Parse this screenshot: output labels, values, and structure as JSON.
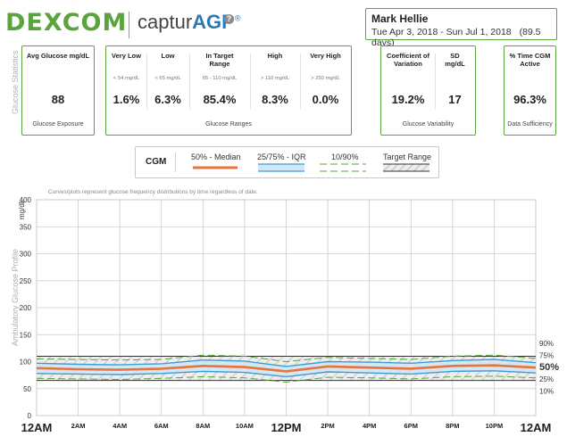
{
  "header": {
    "logo": "DEXCOM",
    "product_prefix": "captur",
    "product_suffix": "AGP",
    "product_mark": "®",
    "help_glyph": "?"
  },
  "patient": {
    "name": "Mark Hellie",
    "date_range": "Tue Apr 3, 2018 - Sun Jul 1, 2018",
    "days": "(89.5 days)"
  },
  "labels": {
    "glucose_statistics": "Glucose Statistics",
    "agp": "Ambulatory Glucose Profile",
    "chart_note": "Curves/plots represent glucose frequency distributions by time regardless of date."
  },
  "stats": {
    "avg": {
      "header": "Avg Glucose mg/dL",
      "value": "88",
      "footer": "Glucose Exposure"
    },
    "ranges": {
      "footer": "Glucose Ranges",
      "items": [
        {
          "header": "Very Low",
          "sub": "< 54 mg/dL",
          "value": "1.6%"
        },
        {
          "header": "Low",
          "sub": "< 65 mg/dL",
          "value": "6.3%"
        },
        {
          "header": "In Target Range",
          "sub": "65 - 110 mg/dL",
          "value": "85.4%"
        },
        {
          "header": "High",
          "sub": "> 110 mg/dL",
          "value": "8.3%"
        },
        {
          "header": "Very High",
          "sub": "> 250 mg/dL",
          "value": "0.0%"
        }
      ]
    },
    "variability": {
      "footer": "Glucose Variability",
      "items": [
        {
          "header": "Coefficient of Variation",
          "value": "19.2%"
        },
        {
          "header": "SD mg/dL",
          "value": "17"
        }
      ]
    },
    "active": {
      "header": "% Time CGM Active",
      "value": "96.3%",
      "footer": "Data Sufficiency"
    }
  },
  "legend": {
    "title": "CGM",
    "items": [
      "50% - Median",
      "25/75% - IQR",
      "10/90%",
      "Target Range"
    ]
  },
  "colors": {
    "brand_green": "#5aa33d",
    "median": "#e8743b",
    "iqr_line": "#3d9bd5",
    "iqr_fill": "#cfe7f6",
    "p10_90": "#5aa33d",
    "grid": "#cccccc"
  },
  "chart_data": {
    "type": "line",
    "ylabel": "mg/dL",
    "ylim": [
      0,
      400
    ],
    "yticks": [
      "0",
      "50",
      "100",
      "150",
      "200",
      "250",
      "300",
      "350",
      "400"
    ],
    "x_hours": [
      0,
      2,
      4,
      6,
      8,
      10,
      12,
      14,
      16,
      18,
      20,
      22,
      24
    ],
    "xticks": [
      "12AM",
      "2AM",
      "4AM",
      "6AM",
      "8AM",
      "10AM",
      "12PM",
      "2PM",
      "4PM",
      "6PM",
      "8PM",
      "10PM",
      "12AM"
    ],
    "target_range": [
      65,
      110
    ],
    "series": [
      {
        "name": "90%",
        "values": [
          105,
          104,
          103,
          104,
          112,
          110,
          100,
          108,
          106,
          104,
          110,
          112,
          106
        ]
      },
      {
        "name": "75%",
        "values": [
          97,
          95,
          94,
          96,
          103,
          101,
          91,
          100,
          99,
          97,
          102,
          104,
          98
        ]
      },
      {
        "name": "50%",
        "values": [
          88,
          86,
          85,
          87,
          92,
          90,
          82,
          91,
          89,
          87,
          92,
          93,
          89
        ]
      },
      {
        "name": "25%",
        "values": [
          78,
          77,
          76,
          78,
          82,
          80,
          72,
          81,
          79,
          77,
          82,
          83,
          79
        ]
      },
      {
        "name": "10%",
        "values": [
          69,
          68,
          67,
          69,
          72,
          70,
          62,
          71,
          70,
          68,
          72,
          73,
          70
        ]
      }
    ],
    "percentile_labels": [
      "90%",
      "75%",
      "50%",
      "25%",
      "10%"
    ]
  }
}
